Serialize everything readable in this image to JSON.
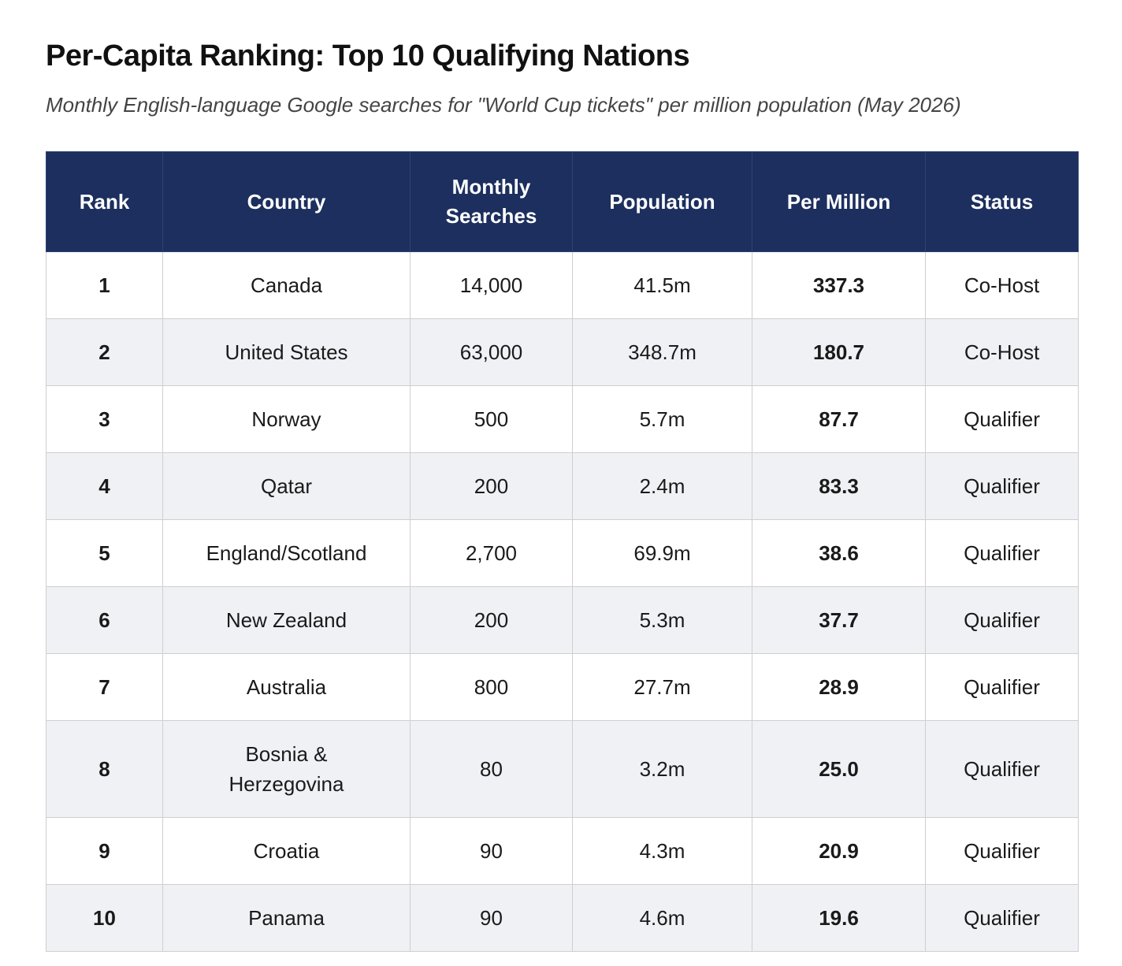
{
  "header": {
    "title": "Per-Capita Ranking: Top 10 Qualifying Nations",
    "subtitle": "Monthly English-language Google searches for \"World Cup tickets\" per million population (May 2026)"
  },
  "table": {
    "columns": [
      "Rank",
      "Country",
      "Monthly Searches",
      "Population",
      "Per Million",
      "Status"
    ],
    "rows": [
      [
        "1",
        "Canada",
        "14,000",
        "41.5m",
        "337.3",
        "Co-Host"
      ],
      [
        "2",
        "United States",
        "63,000",
        "348.7m",
        "180.7",
        "Co-Host"
      ],
      [
        "3",
        "Norway",
        "500",
        "5.7m",
        "87.7",
        "Qualifier"
      ],
      [
        "4",
        "Qatar",
        "200",
        "2.4m",
        "83.3",
        "Qualifier"
      ],
      [
        "5",
        "England/Scotland",
        "2,700",
        "69.9m",
        "38.6",
        "Qualifier"
      ],
      [
        "6",
        "New Zealand",
        "200",
        "5.3m",
        "37.7",
        "Qualifier"
      ],
      [
        "7",
        "Australia",
        "800",
        "27.7m",
        "28.9",
        "Qualifier"
      ],
      [
        "8",
        "Bosnia & Herzegovina",
        "80",
        "3.2m",
        "25.0",
        "Qualifier"
      ],
      [
        "9",
        "Croatia",
        "90",
        "4.3m",
        "20.9",
        "Qualifier"
      ],
      [
        "10",
        "Panama",
        "90",
        "4.6m",
        "19.6",
        "Qualifier"
      ]
    ]
  }
}
